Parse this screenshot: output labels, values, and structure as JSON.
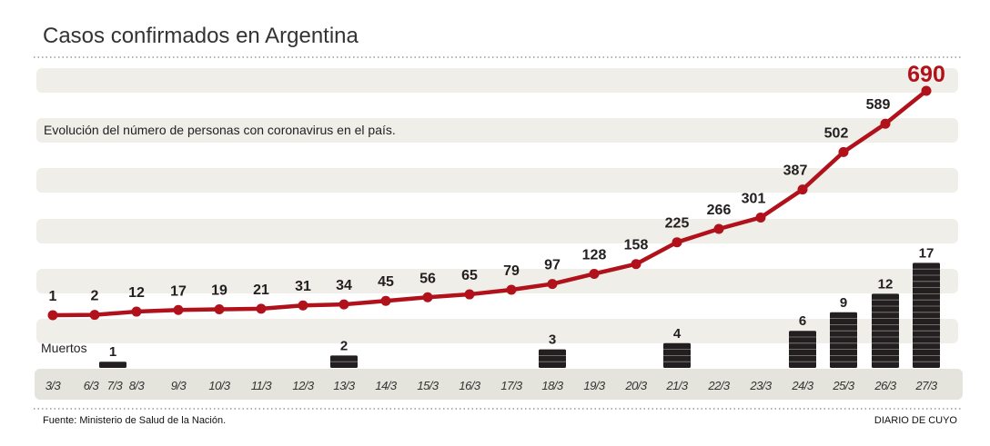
{
  "chart_data": {
    "type": "line",
    "title": "Casos confirmados en Argentina",
    "subtitle": "Evolución del número de personas con coronavirus en el país.",
    "categories": [
      "3/3",
      "6/3",
      "7/3",
      "8/3",
      "9/3",
      "10/3",
      "11/3",
      "12/3",
      "13/3",
      "14/3",
      "15/3",
      "16/3",
      "17/3",
      "18/3",
      "19/3",
      "20/3",
      "21/3",
      "22/3",
      "23/3",
      "24/3",
      "25/3",
      "26/3",
      "27/3"
    ],
    "series": [
      {
        "name": "Casos confirmados",
        "type": "line",
        "color": "#b0111b",
        "values": [
          1,
          2,
          null,
          12,
          17,
          19,
          21,
          31,
          34,
          45,
          56,
          65,
          79,
          97,
          128,
          158,
          225,
          266,
          301,
          387,
          502,
          589,
          690
        ]
      },
      {
        "name": "Muertos",
        "type": "bar",
        "color": "#231f20",
        "values": [
          null,
          null,
          1,
          null,
          null,
          null,
          null,
          null,
          2,
          null,
          null,
          null,
          null,
          3,
          null,
          null,
          4,
          null,
          null,
          6,
          9,
          12,
          17
        ]
      }
    ],
    "deaths_label": "Muertos",
    "ylim": [
      0,
      700
    ],
    "grid": "horizontal bands",
    "source": "Fuente: Ministerio de Salud de la Nación.",
    "credit": "DIARIO DE CUYO"
  }
}
